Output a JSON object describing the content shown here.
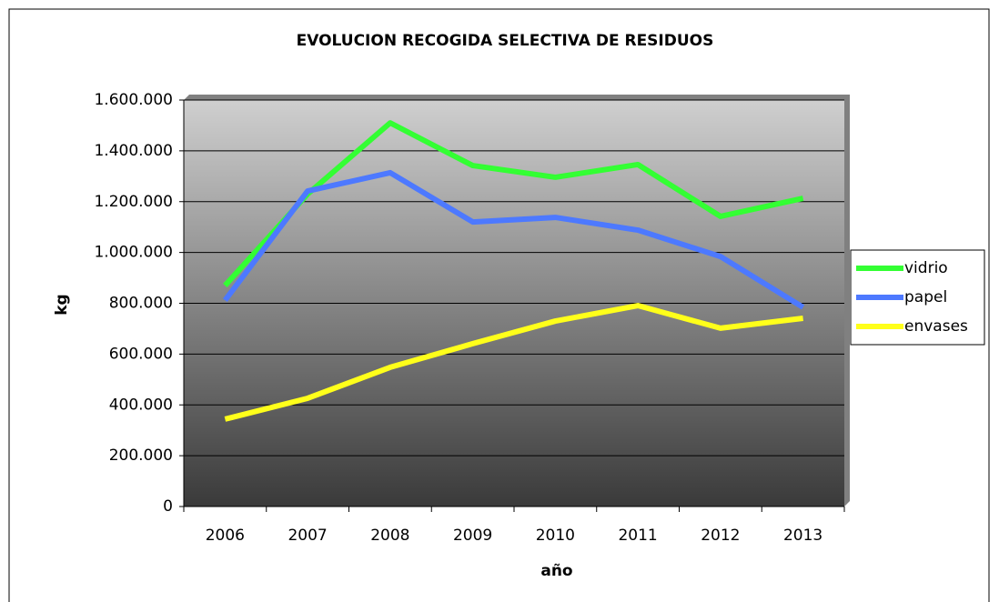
{
  "chart_data": {
    "type": "line",
    "title": "EVOLUCION RECOGIDA SELECTIVA DE RESIDUOS",
    "x_label": "año",
    "y_label": "kg",
    "categories": [
      "2006",
      "2007",
      "2008",
      "2009",
      "2010",
      "2011",
      "2012",
      "2013"
    ],
    "series": [
      {
        "name": "vidrio",
        "color": "#33ff33",
        "values": [
          870000,
          1230000,
          1510000,
          1342000,
          1296000,
          1346000,
          1142000,
          1213000
        ]
      },
      {
        "name": "papel",
        "color": "#4d79ff",
        "values": [
          812000,
          1242000,
          1314000,
          1120000,
          1138000,
          1088000,
          984000,
          784000
        ]
      },
      {
        "name": "envases",
        "color": "#ffff1a",
        "values": [
          344000,
          426000,
          548000,
          641000,
          730000,
          791000,
          702000,
          741000
        ]
      }
    ],
    "ylim": [
      0,
      1600000
    ],
    "yticks": [
      0,
      {
        "value": 200000,
        "label": "200.000"
      },
      {
        "value": 400000,
        "label": "400.000"
      },
      {
        "value": 600000,
        "label": "600.000"
      },
      {
        "value": 800000,
        "label": "800.000"
      },
      {
        "value": 1000000,
        "label": "1.000.000"
      },
      {
        "value": 1200000,
        "label": "1.200.000"
      },
      {
        "value": 1400000,
        "label": "1.400.000"
      },
      {
        "value": 1600000,
        "label": "1.600.000"
      }
    ],
    "grid": true,
    "legend": "right"
  }
}
